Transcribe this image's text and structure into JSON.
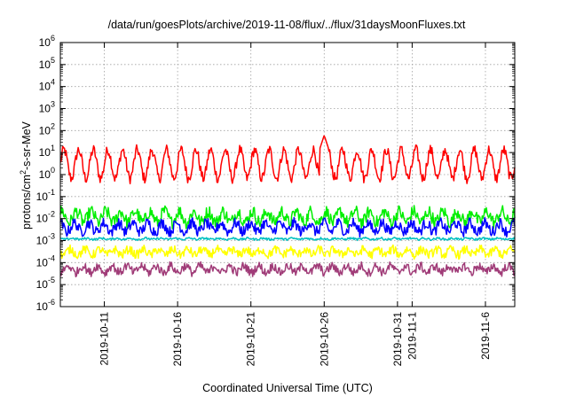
{
  "chart_data": {
    "type": "line",
    "title": "/data/run/goesPlots/archive/2019-11-08/flux/../flux/31daysMoonFluxes.txt",
    "xlabel": "Coordinated Universal Time (UTC)",
    "ylabel": {
      "prefix": "protons/cm",
      "sup": "2",
      "suffix": "-s-sr-MeV"
    },
    "yscale": "log",
    "ylim": [
      1e-06,
      1000000.0
    ],
    "yticks": [
      {
        "base": "10",
        "exp": "-6",
        "value": 1e-06
      },
      {
        "base": "10",
        "exp": "-5",
        "value": 1e-05
      },
      {
        "base": "10",
        "exp": "-4",
        "value": 0.0001
      },
      {
        "base": "10",
        "exp": "-3",
        "value": 0.001
      },
      {
        "base": "10",
        "exp": "-2",
        "value": 0.01
      },
      {
        "base": "10",
        "exp": "-1",
        "value": 0.1
      },
      {
        "base": "10",
        "exp": "0",
        "value": 1
      },
      {
        "base": "10",
        "exp": "1",
        "value": 10
      },
      {
        "base": "10",
        "exp": "2",
        "value": 100
      },
      {
        "base": "10",
        "exp": "3",
        "value": 1000
      },
      {
        "base": "10",
        "exp": "4",
        "value": 10000
      },
      {
        "base": "10",
        "exp": "5",
        "value": 100000
      },
      {
        "base": "10",
        "exp": "6",
        "value": 1000000
      }
    ],
    "xlim": [
      "2019-10-08",
      "2019-11-08"
    ],
    "xticks": [
      {
        "label": "2019-10-11",
        "date": "2019-10-11"
      },
      {
        "label": "2019-10-16",
        "date": "2019-10-16"
      },
      {
        "label": "2019-10-21",
        "date": "2019-10-21"
      },
      {
        "label": "2019-10-26",
        "date": "2019-10-26"
      },
      {
        "label": "2019-10-31",
        "date": "2019-10-31"
      },
      {
        "label": "2019-11-1",
        "date": "2019-11-01"
      },
      {
        "label": "2019-11-6",
        "date": "2019-11-06"
      }
    ],
    "grid": true,
    "legend": "none",
    "series": [
      {
        "color": "#ff0000",
        "median": 3.0,
        "daily_swing_decades": 1.3,
        "noise_decades": 0.25,
        "spikes": [
          {
            "date": "2019-10-26",
            "value": 60
          }
        ]
      },
      {
        "color": "#00ee00",
        "median": 0.012,
        "daily_swing_decades": 0.5,
        "noise_decades": 0.3,
        "spikes": []
      },
      {
        "color": "#0000ff",
        "median": 0.004,
        "daily_swing_decades": 0.4,
        "noise_decades": 0.25,
        "spikes": []
      },
      {
        "color": "#00c0c0",
        "median": 0.0012,
        "daily_swing_decades": 0.05,
        "noise_decades": 0.05,
        "spikes": []
      },
      {
        "color": "#ffff00",
        "median": 0.0003,
        "daily_swing_decades": 0.25,
        "noise_decades": 0.2,
        "spikes": []
      },
      {
        "color": "#a03c78",
        "median": 5e-05,
        "daily_swing_decades": 0.3,
        "noise_decades": 0.2,
        "spikes": []
      }
    ]
  }
}
